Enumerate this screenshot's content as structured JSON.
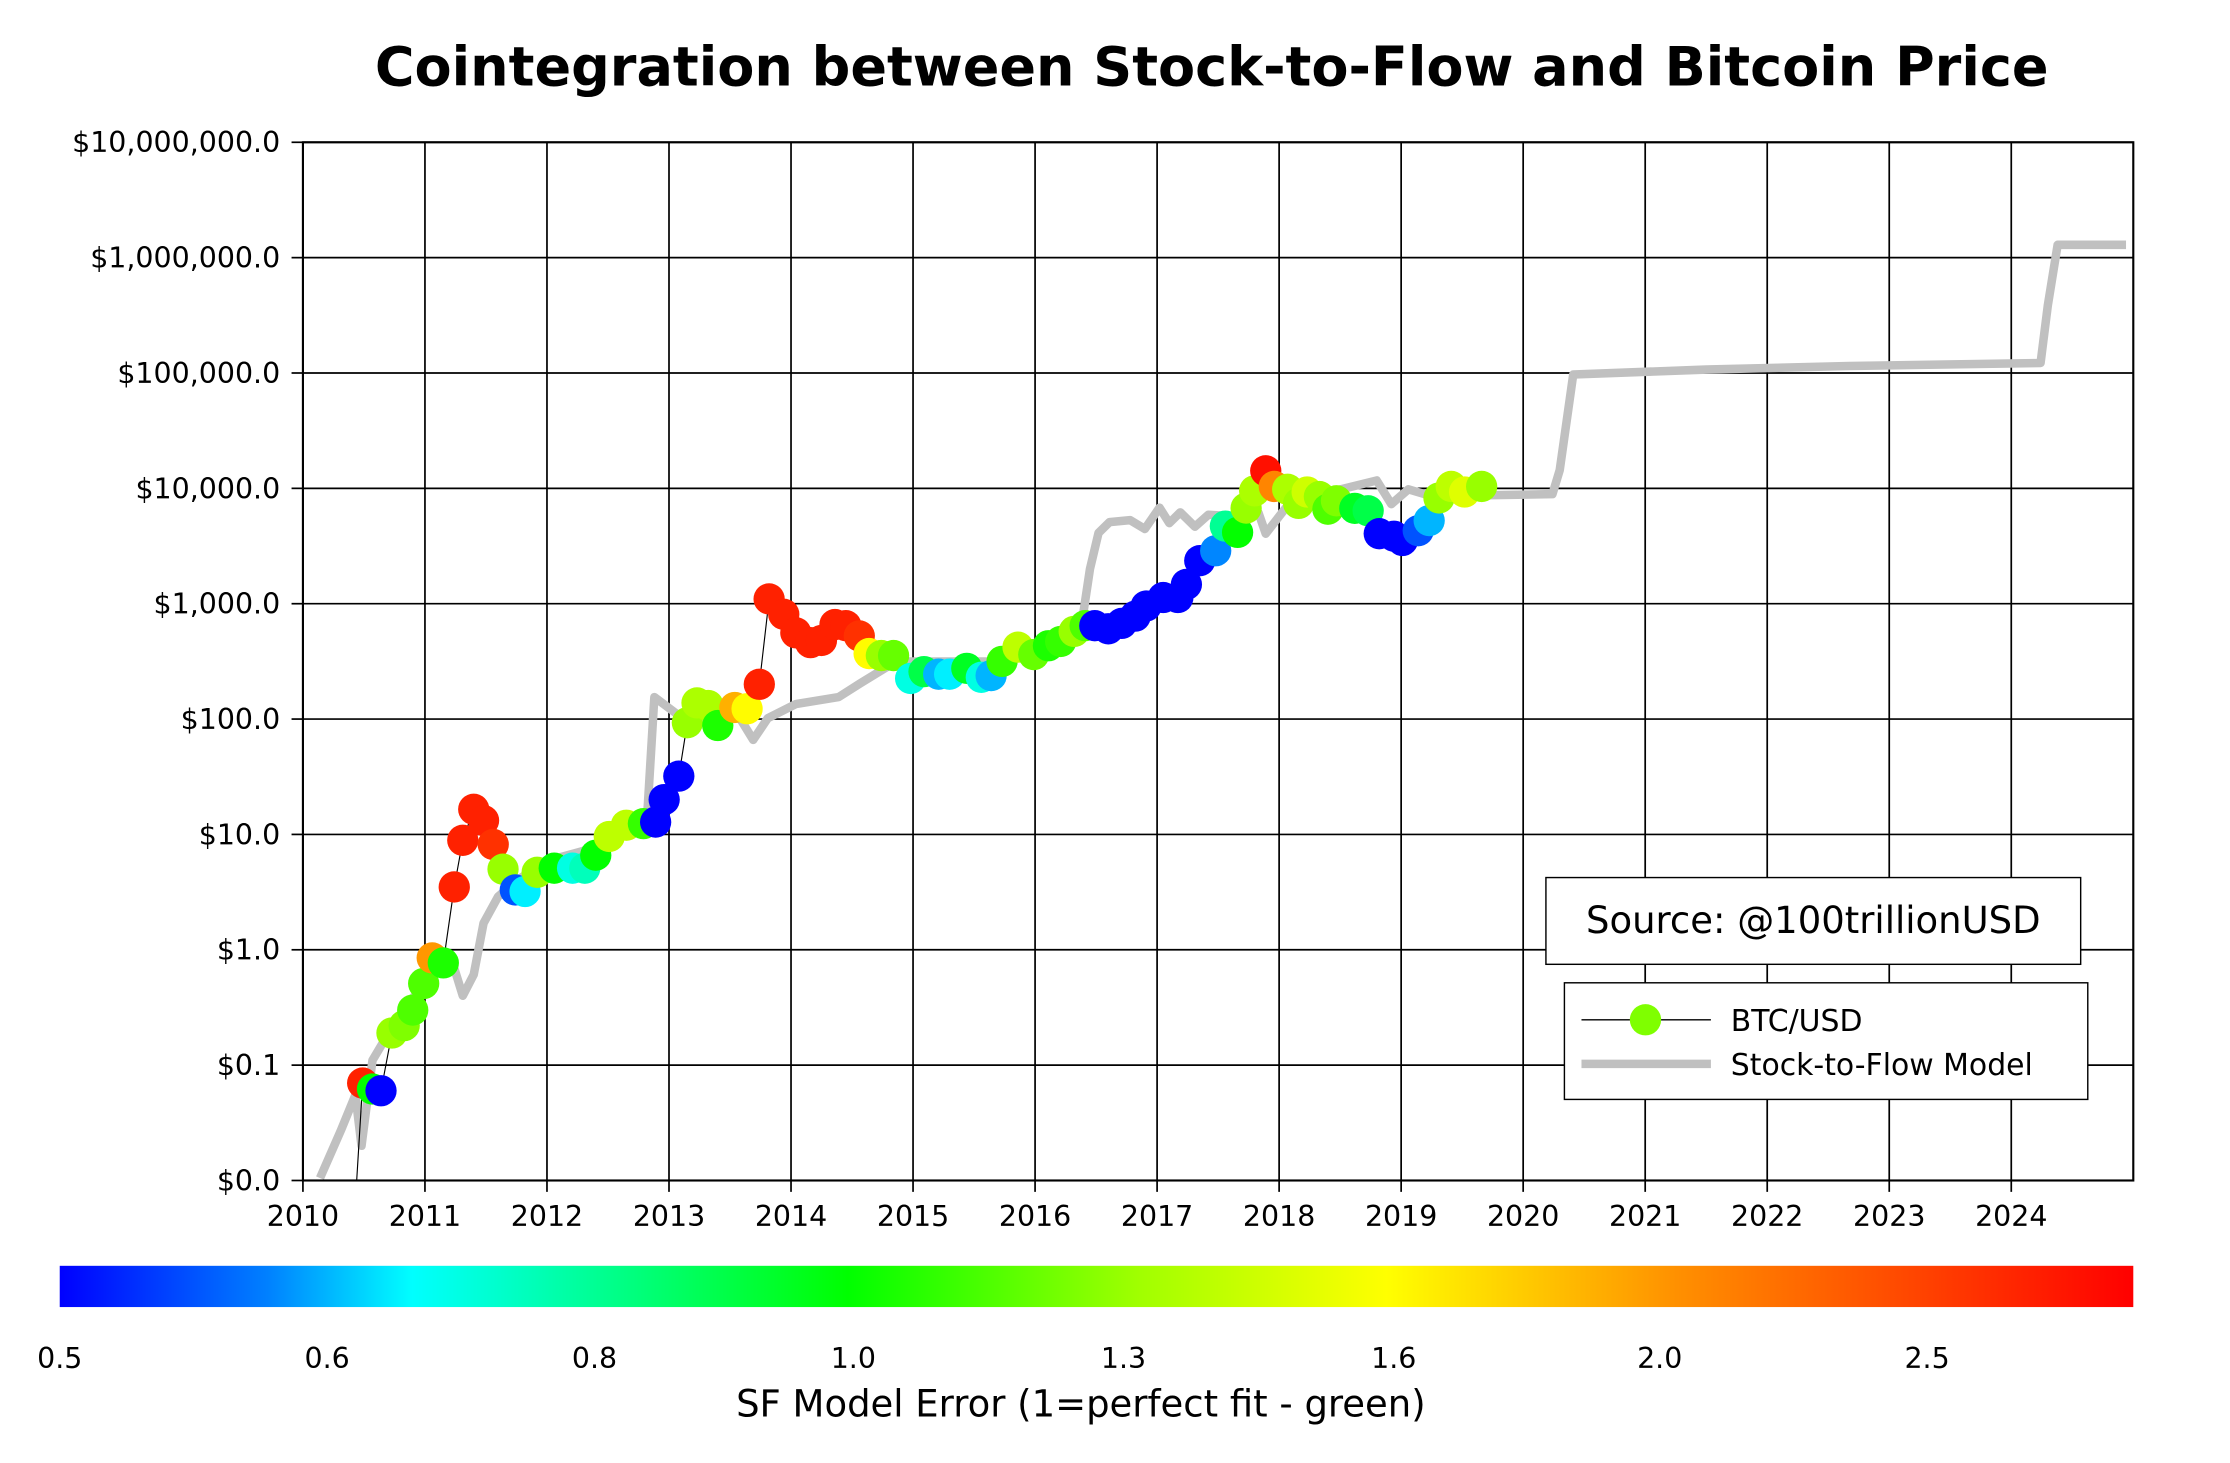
{
  "chart_data": {
    "type": "scatter",
    "title": "Cointegration between Stock-to-Flow and Bitcoin Price",
    "xlabel": "",
    "ylabel": "",
    "x_scale": "time (years)",
    "y_scale": "log",
    "xlim": [
      2010,
      2025
    ],
    "ylim": [
      0.01,
      10000000
    ],
    "grid": true,
    "x_ticks": [
      "2010",
      "2011",
      "2012",
      "2013",
      "2014",
      "2015",
      "2016",
      "2017",
      "2018",
      "2019",
      "2020",
      "2021",
      "2022",
      "2023",
      "2024"
    ],
    "y_ticks": [
      {
        "value": 0.01,
        "label": "$0.0"
      },
      {
        "value": 0.1,
        "label": "$0.1"
      },
      {
        "value": 1,
        "label": "$1.0"
      },
      {
        "value": 10,
        "label": "$10.0"
      },
      {
        "value": 100,
        "label": "$100.0"
      },
      {
        "value": 1000,
        "label": "$1,000.0"
      },
      {
        "value": 10000,
        "label": "$10,000.0"
      },
      {
        "value": 100000,
        "label": "$100,000.0"
      },
      {
        "value": 1000000,
        "label": "$1,000,000.0"
      },
      {
        "value": 10000000,
        "label": "$10,000,000.0"
      }
    ],
    "annotation": "Source: @100trillionUSD",
    "legend_position": "bottom-right",
    "series": [
      {
        "name": "BTC/USD",
        "type": "scatter-line",
        "line_color": "#000000",
        "point_fields": [
          "year",
          "price_usd",
          "sf_model_error"
        ],
        "points": [
          [
            2010.49,
            0.07,
            2.7
          ],
          [
            2010.57,
            0.062,
            1.0
          ],
          [
            2010.64,
            0.06,
            0.5
          ],
          [
            2010.73,
            0.19,
            1.3
          ],
          [
            2010.83,
            0.22,
            1.25
          ],
          [
            2010.9,
            0.3,
            1.15
          ],
          [
            2010.99,
            0.51,
            1.15
          ],
          [
            2011.06,
            0.85,
            2.0
          ],
          [
            2011.15,
            0.77,
            1.05
          ],
          [
            2011.24,
            3.5,
            2.7
          ],
          [
            2011.31,
            8.9,
            2.7
          ],
          [
            2011.4,
            16.5,
            2.7
          ],
          [
            2011.48,
            13.2,
            2.7
          ],
          [
            2011.56,
            8.2,
            2.6
          ],
          [
            2011.64,
            5.0,
            1.3
          ],
          [
            2011.74,
            3.3,
            0.55
          ],
          [
            2011.82,
            3.2,
            0.65
          ],
          [
            2011.92,
            4.7,
            1.3
          ],
          [
            2012.06,
            5.1,
            1.0
          ],
          [
            2012.21,
            5.1,
            0.7
          ],
          [
            2012.31,
            5.1,
            0.75
          ],
          [
            2012.4,
            6.6,
            1.0
          ],
          [
            2012.51,
            9.6,
            1.4
          ],
          [
            2012.65,
            12,
            1.4
          ],
          [
            2012.79,
            12.4,
            1.1
          ],
          [
            2012.89,
            12.8,
            0.5
          ],
          [
            2012.96,
            20,
            0.5
          ],
          [
            2013.08,
            32,
            0.5
          ],
          [
            2013.15,
            93,
            1.3
          ],
          [
            2013.23,
            138,
            1.35
          ],
          [
            2013.32,
            131,
            1.35
          ],
          [
            2013.4,
            88,
            1.05
          ],
          [
            2013.54,
            126,
            1.9
          ],
          [
            2013.64,
            123,
            1.6
          ],
          [
            2013.74,
            200,
            2.7
          ],
          [
            2013.82,
            1100,
            2.7
          ],
          [
            2013.94,
            810,
            2.7
          ],
          [
            2014.04,
            560,
            2.7
          ],
          [
            2014.16,
            460,
            2.7
          ],
          [
            2014.25,
            480,
            2.7
          ],
          [
            2014.36,
            660,
            2.7
          ],
          [
            2014.45,
            645,
            2.7
          ],
          [
            2014.56,
            525,
            2.6
          ],
          [
            2014.64,
            370,
            1.6
          ],
          [
            2014.74,
            355,
            1.3
          ],
          [
            2014.84,
            355,
            1.2
          ],
          [
            2014.98,
            225,
            0.7
          ],
          [
            2015.09,
            258,
            0.9
          ],
          [
            2015.21,
            245,
            0.6
          ],
          [
            2015.3,
            245,
            0.65
          ],
          [
            2015.44,
            275,
            0.95
          ],
          [
            2015.56,
            230,
            0.7
          ],
          [
            2015.64,
            238,
            0.6
          ],
          [
            2015.73,
            316,
            1.1
          ],
          [
            2015.86,
            420,
            1.4
          ],
          [
            2015.99,
            362,
            1.2
          ],
          [
            2016.11,
            432,
            1.05
          ],
          [
            2016.21,
            470,
            1.1
          ],
          [
            2016.32,
            575,
            1.3
          ],
          [
            2016.41,
            645,
            1.15
          ],
          [
            2016.49,
            645,
            0.5
          ],
          [
            2016.6,
            605,
            0.5
          ],
          [
            2016.71,
            675,
            0.5
          ],
          [
            2016.82,
            780,
            0.5
          ],
          [
            2016.91,
            955,
            0.5
          ],
          [
            2017.05,
            1130,
            0.5
          ],
          [
            2017.17,
            1130,
            0.5
          ],
          [
            2017.24,
            1470,
            0.5
          ],
          [
            2017.35,
            2360,
            0.5
          ],
          [
            2017.48,
            2880,
            0.58
          ],
          [
            2017.56,
            4700,
            0.8
          ],
          [
            2017.66,
            4150,
            1.0
          ],
          [
            2017.73,
            6750,
            1.3
          ],
          [
            2017.8,
            9500,
            1.35
          ],
          [
            2017.89,
            14200,
            2.8
          ],
          [
            2017.96,
            10400,
            2.1
          ],
          [
            2018.07,
            9800,
            1.35
          ],
          [
            2018.16,
            7400,
            1.3
          ],
          [
            2018.23,
            9300,
            1.45
          ],
          [
            2018.33,
            8500,
            1.3
          ],
          [
            2018.4,
            6600,
            1.15
          ],
          [
            2018.47,
            7800,
            1.25
          ],
          [
            2018.62,
            6700,
            0.95
          ],
          [
            2018.73,
            6400,
            0.9
          ],
          [
            2018.82,
            4050,
            0.5
          ],
          [
            2018.94,
            3850,
            0.5
          ],
          [
            2019.01,
            3530,
            0.5
          ],
          [
            2019.14,
            4300,
            0.55
          ],
          [
            2019.23,
            5250,
            0.6
          ],
          [
            2019.31,
            8250,
            1.3
          ],
          [
            2019.41,
            10400,
            1.4
          ],
          [
            2019.52,
            9300,
            1.5
          ],
          [
            2019.66,
            10400,
            1.3
          ]
        ]
      },
      {
        "name": "Stock-to-Flow Model",
        "type": "line",
        "color": "#c0c0c0",
        "point_fields": [
          "year",
          "price_usd"
        ],
        "points": [
          [
            2010.14,
            0.0105
          ],
          [
            2010.31,
            0.027
          ],
          [
            2010.43,
            0.055
          ],
          [
            2010.48,
            0.02
          ],
          [
            2010.57,
            0.11
          ],
          [
            2010.78,
            0.26
          ],
          [
            2011.01,
            0.54
          ],
          [
            2011.15,
            0.93
          ],
          [
            2011.22,
            0.81
          ],
          [
            2011.31,
            0.4
          ],
          [
            2011.4,
            0.61
          ],
          [
            2011.48,
            1.7
          ],
          [
            2011.6,
            2.9
          ],
          [
            2011.77,
            4.1
          ],
          [
            2012.0,
            5.9
          ],
          [
            2012.3,
            7.2
          ],
          [
            2012.65,
            10.5
          ],
          [
            2012.82,
            14
          ],
          [
            2012.88,
            155
          ],
          [
            2013.11,
            102
          ],
          [
            2013.34,
            96
          ],
          [
            2013.58,
            102
          ],
          [
            2013.69,
            66
          ],
          [
            2013.81,
            102
          ],
          [
            2014.04,
            135
          ],
          [
            2014.39,
            155
          ],
          [
            2014.57,
            205
          ],
          [
            2014.86,
            315
          ],
          [
            2015.21,
            315
          ],
          [
            2015.68,
            315
          ],
          [
            2016.14,
            455
          ],
          [
            2016.38,
            645
          ],
          [
            2016.45,
            2000
          ],
          [
            2016.52,
            4100
          ],
          [
            2016.61,
            5100
          ],
          [
            2016.78,
            5300
          ],
          [
            2016.9,
            4450
          ],
          [
            2017.02,
            6800
          ],
          [
            2017.1,
            5000
          ],
          [
            2017.19,
            6200
          ],
          [
            2017.31,
            4650
          ],
          [
            2017.42,
            5900
          ],
          [
            2017.66,
            5700
          ],
          [
            2017.83,
            6200
          ],
          [
            2017.89,
            4050
          ],
          [
            2018.01,
            5900
          ],
          [
            2018.12,
            8300
          ],
          [
            2018.47,
            9600
          ],
          [
            2018.8,
            11700
          ],
          [
            2018.92,
            7300
          ],
          [
            2019.06,
            9800
          ],
          [
            2019.29,
            8300
          ],
          [
            2019.46,
            11000
          ],
          [
            2019.7,
            8700
          ],
          [
            2020.24,
            8900
          ],
          [
            2020.3,
            14400
          ],
          [
            2020.41,
            97000
          ],
          [
            2021.5,
            107000
          ],
          [
            2022.67,
            115000
          ],
          [
            2024.24,
            122000
          ],
          [
            2024.3,
            385000
          ],
          [
            2024.38,
            1290000
          ],
          [
            2024.94,
            1290000
          ]
        ]
      }
    ],
    "colorbar": {
      "label": "SF Model Error (1=perfect fit - green)",
      "ticks": [
        "0.5",
        "0.6",
        "0.8",
        "1.0",
        "1.3",
        "1.6",
        "2.0",
        "2.5"
      ],
      "tick_values": [
        0.5,
        0.6,
        0.8,
        1.0,
        1.3,
        1.6,
        2.0,
        2.5
      ],
      "colormap": "jet",
      "colors": [
        "#0000ff",
        "#00a0ff",
        "#00ffff",
        "#00ff00",
        "#ffff00",
        "#ff8c00",
        "#ff0000"
      ]
    },
    "legend": {
      "btc_label": "BTC/USD",
      "s2f_label": "Stock-to-Flow Model",
      "marker_color": "#7fff00"
    }
  }
}
